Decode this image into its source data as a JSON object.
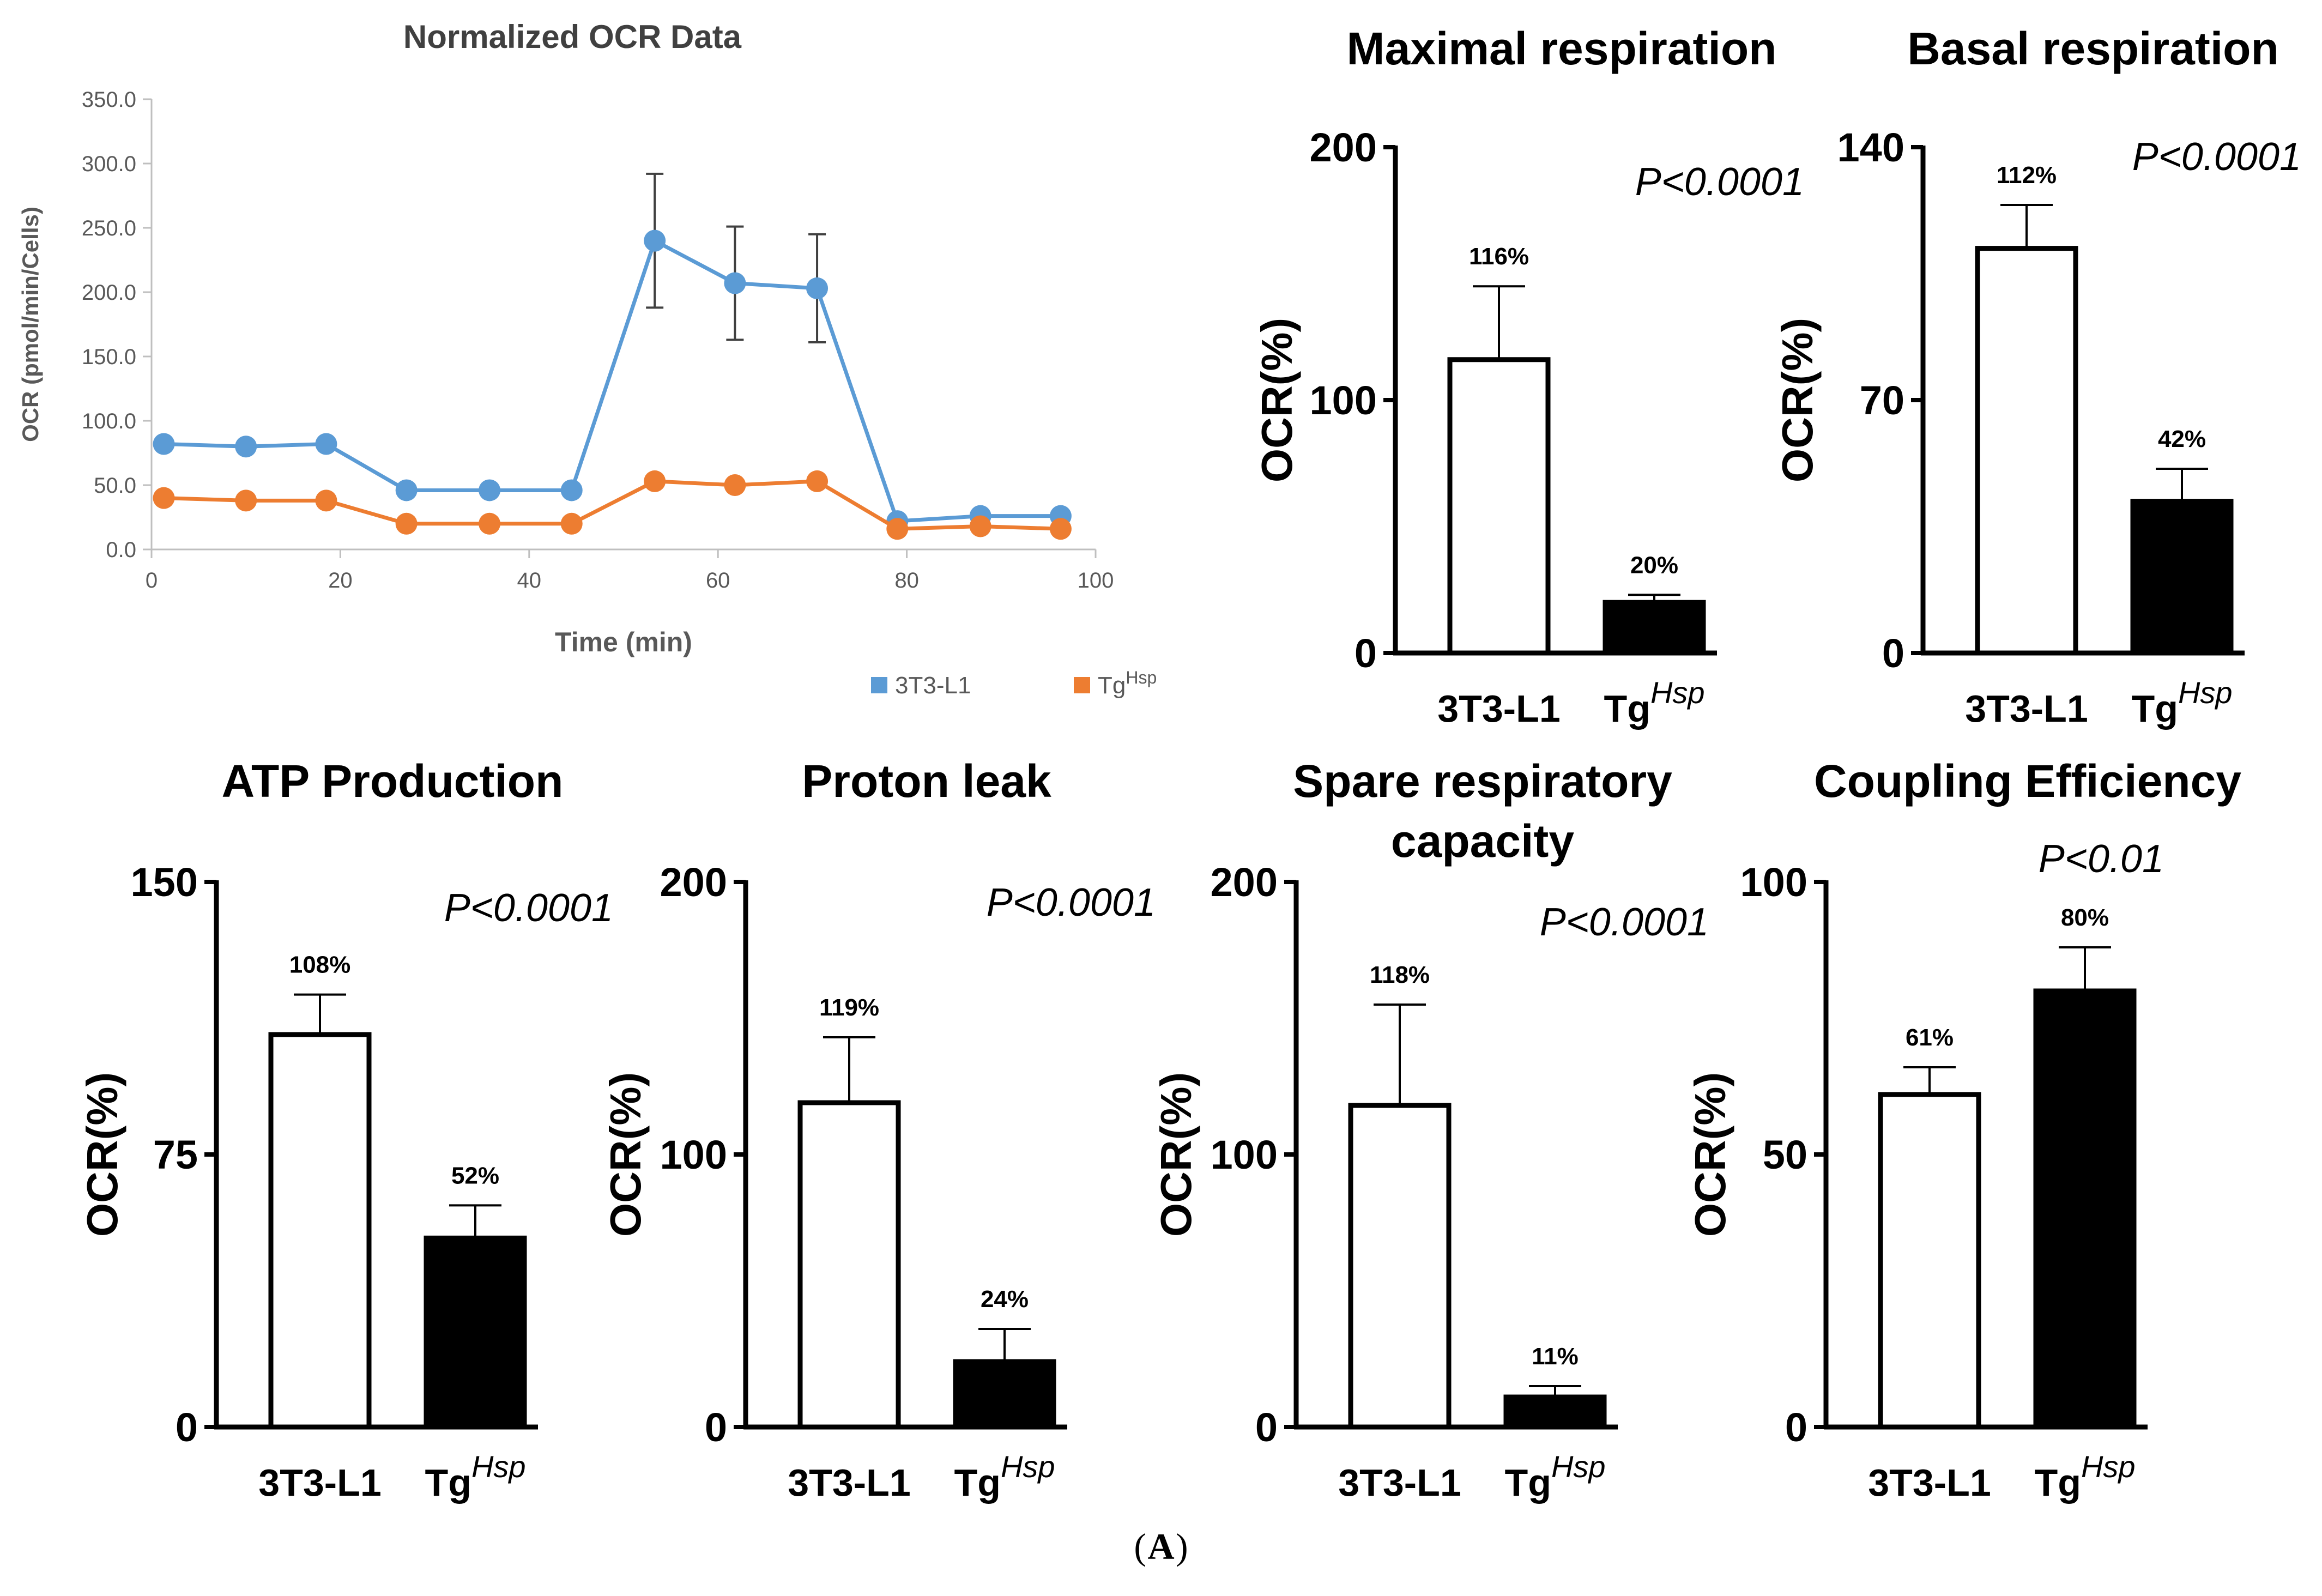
{
  "figure": {
    "panel_label": "A",
    "panel_label_prefix": "(",
    "panel_label_suffix": ")"
  },
  "colors": {
    "series_3t3": "#5b9bd5",
    "series_tg": "#ed7d31",
    "bar_black": "#000000",
    "bar_white": "#ffffff"
  },
  "chart_data": [
    {
      "type": "line",
      "title": "Normalized OCR Data",
      "xlabel": "Time (min)",
      "ylabel": "OCR (pmol/min/Cells)",
      "xlim": [
        0,
        100
      ],
      "ylim": [
        0,
        350
      ],
      "xticks": [
        0,
        20,
        40,
        60,
        80,
        100
      ],
      "yticks": [
        "0.0",
        "50.0",
        "100.0",
        "150.0",
        "200.0",
        "250.0",
        "300.0",
        "350.0"
      ],
      "legend": {
        "placement": "bottom-right"
      },
      "series": [
        {
          "name": "3T3-L1",
          "x": [
            1.3,
            10,
            18.5,
            27,
            35.8,
            44.5,
            53.3,
            61.8,
            70.5,
            79,
            87.8,
            96.3
          ],
          "y": [
            82,
            80,
            82,
            46,
            46,
            46,
            240,
            207,
            203,
            22,
            26,
            26
          ],
          "err": [
            0,
            0,
            0,
            0,
            0,
            0,
            52,
            44,
            42,
            0,
            0,
            0
          ]
        },
        {
          "name": "Tg",
          "name_sup": "Hsp",
          "x": [
            1.3,
            10,
            18.5,
            27,
            35.8,
            44.5,
            53.3,
            61.8,
            70.5,
            79,
            87.8,
            96.3
          ],
          "y": [
            40,
            38,
            38,
            20,
            20,
            20,
            53,
            50,
            53,
            16,
            18,
            16
          ],
          "err": [
            0,
            0,
            0,
            0,
            0,
            0,
            0,
            0,
            0,
            0,
            0,
            0
          ]
        }
      ]
    },
    {
      "type": "bar",
      "title": "Maximal respiration",
      "ylabel": "OCR(%)",
      "ylim": [
        0,
        200
      ],
      "yticks": [
        "0",
        "100",
        "200"
      ],
      "pvalue": "P<0.0001",
      "categories": [
        {
          "main": "3T3-L1",
          "sup": ""
        },
        {
          "main": "Tg",
          "sup": "Hsp"
        }
      ],
      "values": [
        116,
        20
      ],
      "errors": [
        29,
        3
      ],
      "value_labels": [
        "116%",
        "20%"
      ]
    },
    {
      "type": "bar",
      "title": "Basal respiration",
      "ylabel": "OCR(%)",
      "ylim": [
        0,
        140
      ],
      "yticks": [
        "0",
        "70",
        "140"
      ],
      "pvalue": "P<0.0001",
      "categories": [
        {
          "main": "3T3-L1",
          "sup": ""
        },
        {
          "main": "Tg",
          "sup": "Hsp"
        }
      ],
      "values": [
        112,
        42
      ],
      "errors": [
        12,
        9
      ],
      "value_labels": [
        "112%",
        "42%"
      ]
    },
    {
      "type": "bar",
      "title": "ATP Production",
      "ylabel": "OCR(%)",
      "ylim": [
        0,
        150
      ],
      "yticks": [
        "0",
        "75",
        "150"
      ],
      "pvalue": "P<0.0001",
      "categories": [
        {
          "main": "3T3-L1",
          "sup": ""
        },
        {
          "main": "Tg",
          "sup": "Hsp"
        }
      ],
      "values": [
        108,
        52
      ],
      "errors": [
        11,
        9
      ],
      "value_labels": [
        "108%",
        "52%"
      ]
    },
    {
      "type": "bar",
      "title": "Proton leak",
      "ylabel": "OCR(%)",
      "ylim": [
        0,
        200
      ],
      "yticks": [
        "0",
        "100",
        "200"
      ],
      "pvalue": "P<0.0001",
      "categories": [
        {
          "main": "3T3-L1",
          "sup": ""
        },
        {
          "main": "Tg",
          "sup": "Hsp"
        }
      ],
      "values": [
        119,
        24
      ],
      "errors": [
        24,
        12
      ],
      "value_labels": [
        "119%",
        "24%"
      ]
    },
    {
      "type": "bar",
      "title": "Spare respiratory capacity",
      "title_lines": [
        "Spare respiratory",
        "capacity"
      ],
      "ylabel": "OCR(%)",
      "ylim": [
        0,
        200
      ],
      "yticks": [
        "0",
        "100",
        "200"
      ],
      "pvalue": "P<0.0001",
      "categories": [
        {
          "main": "3T3-L1",
          "sup": ""
        },
        {
          "main": "Tg",
          "sup": "Hsp"
        }
      ],
      "values": [
        118,
        11
      ],
      "errors": [
        37,
        4
      ],
      "value_labels": [
        "118%",
        "11%"
      ]
    },
    {
      "type": "bar",
      "title": "Coupling Efficiency",
      "ylabel": "OCR(%)",
      "ylim": [
        0,
        100
      ],
      "yticks": [
        "0",
        "50",
        "100"
      ],
      "pvalue": "P<0.01",
      "categories": [
        {
          "main": "3T3-L1",
          "sup": ""
        },
        {
          "main": "Tg",
          "sup": "Hsp"
        }
      ],
      "values": [
        61,
        80
      ],
      "errors": [
        5,
        8
      ],
      "value_labels": [
        "61%",
        "80%"
      ]
    }
  ]
}
